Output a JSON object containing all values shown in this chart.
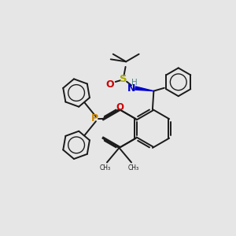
{
  "bg_color": "#e6e6e6",
  "line_color": "#1a1a1a",
  "bond_lw": 1.4,
  "fig_size": [
    3.0,
    3.0
  ],
  "dpi": 100,
  "phosphorus": {
    "color": "#cc8800",
    "label": "P"
  },
  "sulfur": {
    "color": "#aaaa00",
    "label": "S"
  },
  "oxygen": {
    "color": "#cc0000",
    "label": "O"
  },
  "nitrogen": {
    "color": "#0000cc",
    "label": "N"
  },
  "hydrogen_N": {
    "color": "#558888",
    "label": "H"
  }
}
